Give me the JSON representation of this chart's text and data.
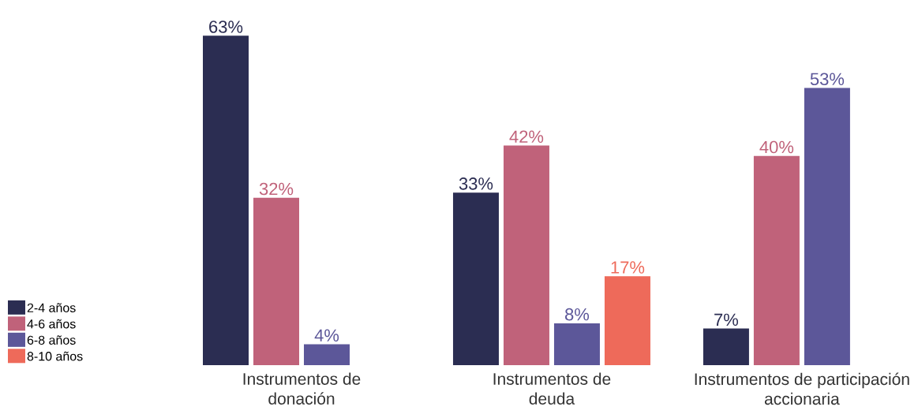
{
  "chart_data": {
    "type": "bar",
    "categories": [
      "Instrumentos de donación",
      "Instrumentos de deuda",
      "Instrumentos de participación accionaria"
    ],
    "series": [
      {
        "name": "2-4 años",
        "color": "#2b2d52",
        "values": [
          63,
          33,
          7
        ],
        "value_labels": [
          "63%",
          "33%",
          "7%"
        ]
      },
      {
        "name": "4-6 años",
        "color": "#c0627a",
        "values": [
          32,
          42,
          40
        ],
        "value_labels": [
          "32%",
          "42%",
          "40%"
        ]
      },
      {
        "name": "6-8 años",
        "color": "#5c5799",
        "values": [
          4,
          8,
          53
        ],
        "value_labels": [
          "4%",
          "8%",
          "53%"
        ]
      },
      {
        "name": "8-10 años",
        "color": "#ee6a5a",
        "values": [
          null,
          17,
          null
        ],
        "value_labels": [
          null,
          "17%",
          null
        ]
      }
    ],
    "legend": "bottom left"
  }
}
